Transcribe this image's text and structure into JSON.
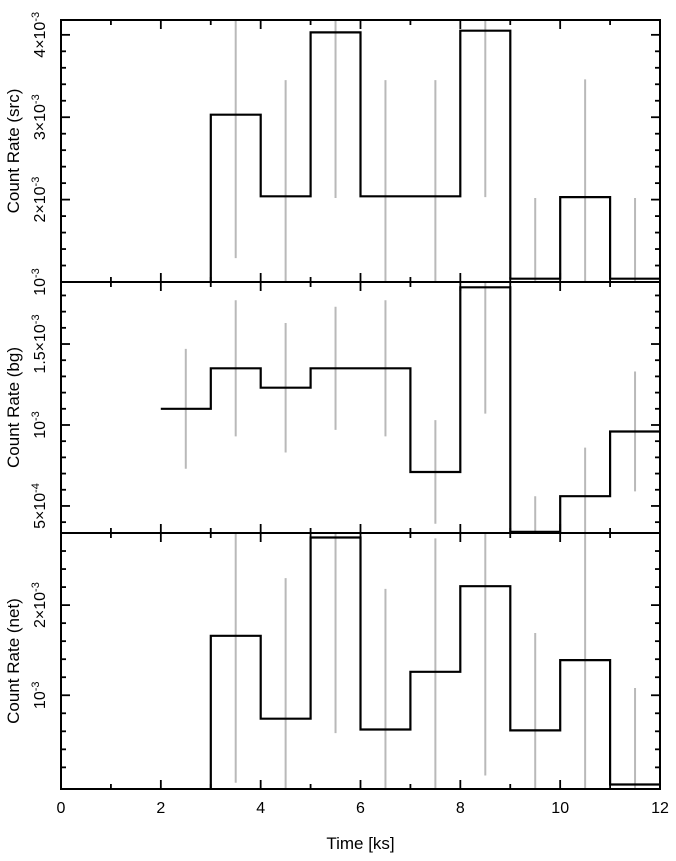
{
  "figure": {
    "description": "Three-panel light curve: source, background and net count rate versus time",
    "background_color": "#ffffff",
    "frame_color": "#000000"
  },
  "chart_data": {
    "type": "step-histogram",
    "title": "",
    "xlabel": "Time [ks]",
    "x_range": [
      0,
      12
    ],
    "x_major_ticks": [
      0,
      2,
      4,
      6,
      8,
      10,
      12
    ],
    "x_tick_labels": [
      "0",
      "2",
      "4",
      "6",
      "8",
      "10",
      "12"
    ],
    "x_minor_ticks": [
      1,
      3,
      5,
      7,
      9,
      11
    ],
    "grid": false,
    "legend": false,
    "line_color": "#000000",
    "error_bar_color": "#b9b9b9",
    "panels": [
      {
        "name": "src",
        "ylabel": "Count Rate (src)",
        "y_range": [
          0.001,
          0.00418
        ],
        "y_minor_step": 0.0002,
        "start_from_bottom": true,
        "y_major_ticks": [
          {
            "value": 0.001,
            "mantissa": "10",
            "exponent": "-3"
          },
          {
            "value": 0.002,
            "mantissa": "2×10",
            "exponent": "-3"
          },
          {
            "value": 0.003,
            "mantissa": "3×10",
            "exponent": "-3"
          },
          {
            "value": 0.004,
            "mantissa": "4×10",
            "exponent": "-3"
          }
        ],
        "bins": [
          {
            "t_start": 3,
            "t_end": 4,
            "rate": 0.00303,
            "error": 0.00174
          },
          {
            "t_start": 4,
            "t_end": 5,
            "rate": 0.00204,
            "error": 0.00141
          },
          {
            "t_start": 5,
            "t_end": 6,
            "rate": 0.00403,
            "error": 0.00201
          },
          {
            "t_start": 6,
            "t_end": 7,
            "rate": 0.00204,
            "error": 0.00141
          },
          {
            "t_start": 7,
            "t_end": 8,
            "rate": 0.00204,
            "error": 0.00141
          },
          {
            "t_start": 8,
            "t_end": 9,
            "rate": 0.00405,
            "error": 0.00202
          },
          {
            "t_start": 9,
            "t_end": 10,
            "rate": 0.00104,
            "error": 0.00098
          },
          {
            "t_start": 10,
            "t_end": 11,
            "rate": 0.00203,
            "error": 0.00143
          },
          {
            "t_start": 11,
            "t_end": 12,
            "rate": 0.00104,
            "error": 0.00098
          }
        ]
      },
      {
        "name": "bg",
        "ylabel": "Count Rate (bg)",
        "y_range": [
          0.000333,
          0.001883
        ],
        "y_minor_step": 0.0001,
        "start_from_bottom": false,
        "y_major_ticks": [
          {
            "value": 0.0005,
            "mantissa": "5×10",
            "exponent": "-4"
          },
          {
            "value": 0.001,
            "mantissa": "10",
            "exponent": "-3"
          },
          {
            "value": 0.0015,
            "mantissa": "1.5×10",
            "exponent": "-3"
          }
        ],
        "bins": [
          {
            "t_start": 2,
            "t_end": 3,
            "rate": 0.0011,
            "error": 0.00037
          },
          {
            "t_start": 3,
            "t_end": 4,
            "rate": 0.00135,
            "error": 0.00042
          },
          {
            "t_start": 4,
            "t_end": 5,
            "rate": 0.00123,
            "error": 0.0004
          },
          {
            "t_start": 5,
            "t_end": 6,
            "rate": 0.00135,
            "error": 0.00038
          },
          {
            "t_start": 6,
            "t_end": 7,
            "rate": 0.00135,
            "error": 0.00042
          },
          {
            "t_start": 7,
            "t_end": 8,
            "rate": 0.00071,
            "error": 0.00032
          },
          {
            "t_start": 8,
            "t_end": 9,
            "rate": 0.00185,
            "error": 0.00078
          },
          {
            "t_start": 9,
            "t_end": 10,
            "rate": 0.00034,
            "error": 0.00022
          },
          {
            "t_start": 10,
            "t_end": 11,
            "rate": 0.00056,
            "error": 0.0003
          },
          {
            "t_start": 11,
            "t_end": 12,
            "rate": 0.00096,
            "error": 0.00037
          }
        ]
      },
      {
        "name": "net",
        "ylabel": "Count Rate (net)",
        "y_range": [
          -4e-05,
          0.0028
        ],
        "y_minor_step": 0.0002,
        "start_from_bottom": true,
        "y_major_ticks": [
          {
            "value": 0.001,
            "mantissa": "10",
            "exponent": "-3"
          },
          {
            "value": 0.002,
            "mantissa": "2×10",
            "exponent": "-3"
          }
        ],
        "bins": [
          {
            "t_start": 3,
            "t_end": 4,
            "rate": 0.00166,
            "error": 0.00163
          },
          {
            "t_start": 4,
            "t_end": 5,
            "rate": 0.00074,
            "error": 0.00156
          },
          {
            "t_start": 5,
            "t_end": 6,
            "rate": 0.00275,
            "error": 0.00217
          },
          {
            "t_start": 6,
            "t_end": 7,
            "rate": 0.00062,
            "error": 0.00156
          },
          {
            "t_start": 7,
            "t_end": 8,
            "rate": 0.00126,
            "error": 0.00148
          },
          {
            "t_start": 8,
            "t_end": 9,
            "rate": 0.00221,
            "error": 0.0021
          },
          {
            "t_start": 9,
            "t_end": 10,
            "rate": 0.00061,
            "error": 0.00108
          },
          {
            "t_start": 10,
            "t_end": 11,
            "rate": 0.00139,
            "error": 0.00155
          },
          {
            "t_start": 11,
            "t_end": 12,
            "rate": 1e-05,
            "error": 0.00107
          }
        ]
      }
    ]
  }
}
